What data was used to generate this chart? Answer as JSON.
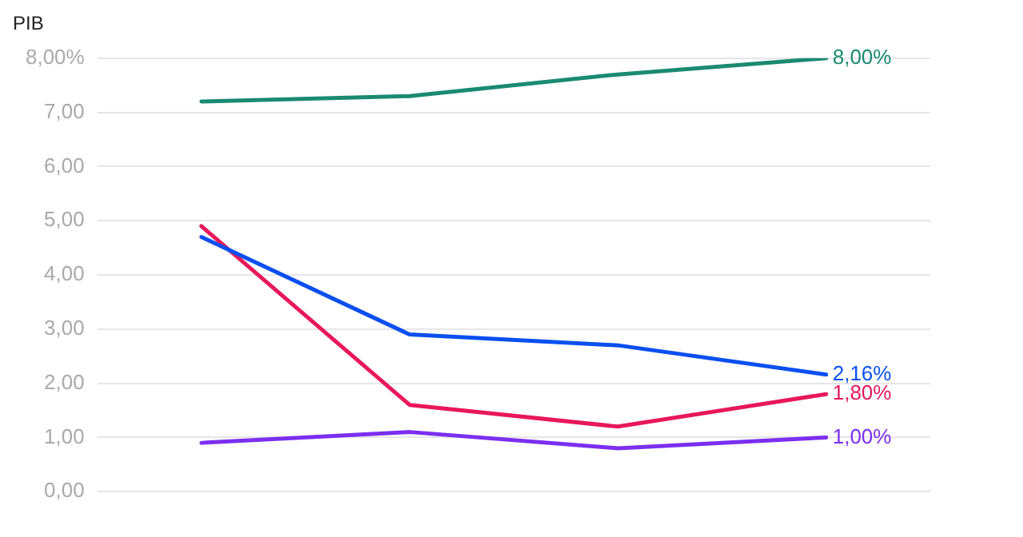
{
  "chart_data": {
    "type": "line",
    "title": "PIB",
    "categories": [
      null,
      null,
      null,
      null
    ],
    "series": [
      {
        "color": "#1a8a72",
        "values": [
          7.2,
          7.3,
          7.7,
          8.0
        ],
        "value_labels": [
          null,
          null,
          null,
          "8,00%"
        ]
      },
      {
        "color": "#0a4ff0",
        "values": [
          4.7,
          2.9,
          2.7,
          2.16
        ],
        "value_labels": [
          null,
          null,
          null,
          "2,16%"
        ]
      },
      {
        "color": "#e8185a",
        "values": [
          4.9,
          1.6,
          1.2,
          1.8
        ],
        "value_labels": [
          null,
          null,
          null,
          "1,80%"
        ]
      },
      {
        "color": "#7b2ff0",
        "values": [
          0.9,
          1.1,
          0.8,
          1.0
        ],
        "value_labels": [
          null,
          null,
          null,
          "1,00%"
        ]
      }
    ],
    "ylim": [
      0,
      8
    ],
    "yticks": [
      {
        "value": 0,
        "label": "0,00"
      },
      {
        "value": 1,
        "label": "1,00"
      },
      {
        "value": 2,
        "label": "2,00"
      },
      {
        "value": 3,
        "label": "3,00"
      },
      {
        "value": 4,
        "label": "4,00"
      },
      {
        "value": 5,
        "label": "5,00"
      },
      {
        "value": 6,
        "label": "6,00"
      },
      {
        "value": 7,
        "label": "7,00"
      },
      {
        "value": 8,
        "label": "8,00%"
      }
    ],
    "grid": "y",
    "legend": false,
    "marker": "none",
    "line_style": "solid"
  }
}
